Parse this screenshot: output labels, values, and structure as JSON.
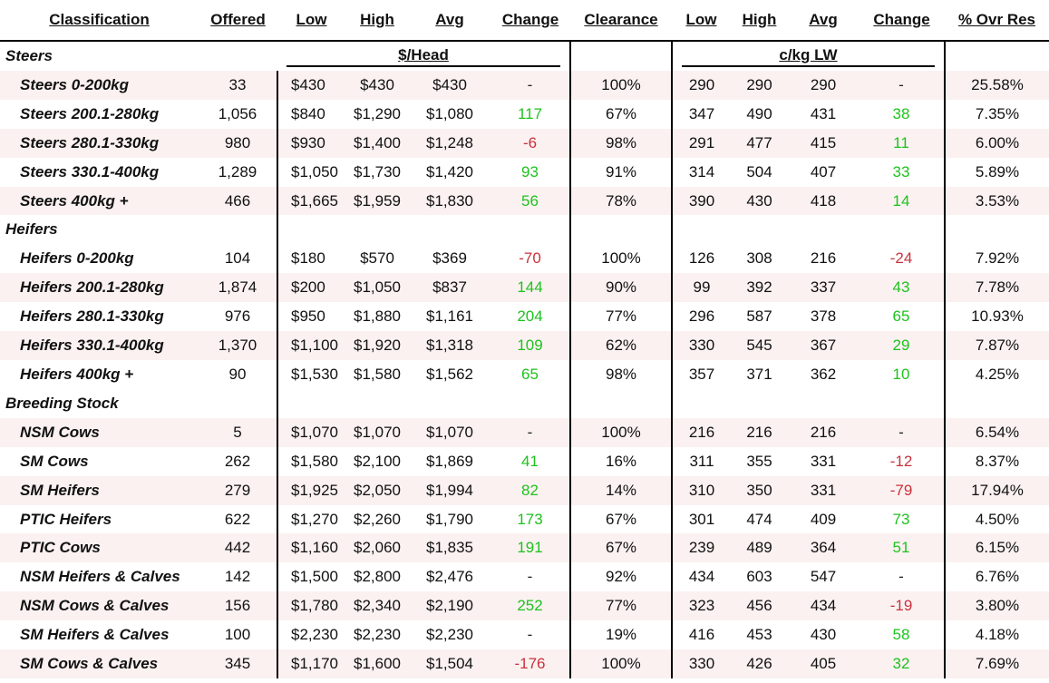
{
  "headers": {
    "classification": "Classification",
    "offered": "Offered",
    "low": "Low",
    "high": "High",
    "avg": "Avg",
    "change": "Change",
    "clearance": "Clearance",
    "low2": "Low",
    "high2": "High",
    "avg2": "Avg",
    "change2": "Change",
    "ovr_res": "% Ovr Res"
  },
  "subheaders": {
    "head": "$/Head",
    "lw": "c/kg LW"
  },
  "colors": {
    "positive": "#1ec21e",
    "negative": "#c8323c",
    "row_shade": "#fbf1f1"
  },
  "sections": [
    {
      "title": "Steers",
      "rows": [
        {
          "name": "Steers 0-200kg",
          "offered": "33",
          "low": "$430",
          "high": "$430",
          "avg": "$430",
          "change": "-",
          "clearance": "100%",
          "low_c": "290",
          "high_c": "290",
          "avg_c": "290",
          "change_c": "-",
          "ovr": "25.58%"
        },
        {
          "name": "Steers 200.1-280kg",
          "offered": "1,056",
          "low": "$840",
          "high": "$1,290",
          "avg": "$1,080",
          "change": "117",
          "clearance": "67%",
          "low_c": "347",
          "high_c": "490",
          "avg_c": "431",
          "change_c": "38",
          "ovr": "7.35%"
        },
        {
          "name": "Steers 280.1-330kg",
          "offered": "980",
          "low": "$930",
          "high": "$1,400",
          "avg": "$1,248",
          "change": "-6",
          "clearance": "98%",
          "low_c": "291",
          "high_c": "477",
          "avg_c": "415",
          "change_c": "11",
          "ovr": "6.00%"
        },
        {
          "name": "Steers 330.1-400kg",
          "offered": "1,289",
          "low": "$1,050",
          "high": "$1,730",
          "avg": "$1,420",
          "change": "93",
          "clearance": "91%",
          "low_c": "314",
          "high_c": "504",
          "avg_c": "407",
          "change_c": "33",
          "ovr": "5.89%"
        },
        {
          "name": "Steers 400kg +",
          "offered": "466",
          "low": "$1,665",
          "high": "$1,959",
          "avg": "$1,830",
          "change": "56",
          "clearance": "78%",
          "low_c": "390",
          "high_c": "430",
          "avg_c": "418",
          "change_c": "14",
          "ovr": "3.53%"
        }
      ]
    },
    {
      "title": "Heifers",
      "rows": [
        {
          "name": "Heifers 0-200kg",
          "offered": "104",
          "low": "$180",
          "high": "$570",
          "avg": "$369",
          "change": "-70",
          "clearance": "100%",
          "low_c": "126",
          "high_c": "308",
          "avg_c": "216",
          "change_c": "-24",
          "ovr": "7.92%"
        },
        {
          "name": "Heifers 200.1-280kg",
          "offered": "1,874",
          "low": "$200",
          "high": "$1,050",
          "avg": "$837",
          "change": "144",
          "clearance": "90%",
          "low_c": "99",
          "high_c": "392",
          "avg_c": "337",
          "change_c": "43",
          "ovr": "7.78%"
        },
        {
          "name": "Heifers 280.1-330kg",
          "offered": "976",
          "low": "$950",
          "high": "$1,880",
          "avg": "$1,161",
          "change": "204",
          "clearance": "77%",
          "low_c": "296",
          "high_c": "587",
          "avg_c": "378",
          "change_c": "65",
          "ovr": "10.93%"
        },
        {
          "name": "Heifers 330.1-400kg",
          "offered": "1,370",
          "low": "$1,100",
          "high": "$1,920",
          "avg": "$1,318",
          "change": "109",
          "clearance": "62%",
          "low_c": "330",
          "high_c": "545",
          "avg_c": "367",
          "change_c": "29",
          "ovr": "7.87%"
        },
        {
          "name": "Heifers 400kg +",
          "offered": "90",
          "low": "$1,530",
          "high": "$1,580",
          "avg": "$1,562",
          "change": "65",
          "clearance": "98%",
          "low_c": "357",
          "high_c": "371",
          "avg_c": "362",
          "change_c": "10",
          "ovr": "4.25%"
        }
      ]
    },
    {
      "title": "Breeding Stock",
      "rows": [
        {
          "name": "NSM Cows",
          "offered": "5",
          "low": "$1,070",
          "high": "$1,070",
          "avg": "$1,070",
          "change": "-",
          "clearance": "100%",
          "low_c": "216",
          "high_c": "216",
          "avg_c": "216",
          "change_c": "-",
          "ovr": "6.54%"
        },
        {
          "name": "SM Cows",
          "offered": "262",
          "low": "$1,580",
          "high": "$2,100",
          "avg": "$1,869",
          "change": "41",
          "clearance": "16%",
          "low_c": "311",
          "high_c": "355",
          "avg_c": "331",
          "change_c": "-12",
          "ovr": "8.37%"
        },
        {
          "name": "SM Heifers",
          "offered": "279",
          "low": "$1,925",
          "high": "$2,050",
          "avg": "$1,994",
          "change": "82",
          "clearance": "14%",
          "low_c": "310",
          "high_c": "350",
          "avg_c": "331",
          "change_c": "-79",
          "ovr": "17.94%"
        },
        {
          "name": "PTIC Heifers",
          "offered": "622",
          "low": "$1,270",
          "high": "$2,260",
          "avg": "$1,790",
          "change": "173",
          "clearance": "67%",
          "low_c": "301",
          "high_c": "474",
          "avg_c": "409",
          "change_c": "73",
          "ovr": "4.50%"
        },
        {
          "name": "PTIC Cows",
          "offered": "442",
          "low": "$1,160",
          "high": "$2,060",
          "avg": "$1,835",
          "change": "191",
          "clearance": "67%",
          "low_c": "239",
          "high_c": "489",
          "avg_c": "364",
          "change_c": "51",
          "ovr": "6.15%"
        },
        {
          "name": "NSM Heifers & Calves",
          "offered": "142",
          "low": "$1,500",
          "high": "$2,800",
          "avg": "$2,476",
          "change": "-",
          "clearance": "92%",
          "low_c": "434",
          "high_c": "603",
          "avg_c": "547",
          "change_c": "-",
          "ovr": "6.76%"
        },
        {
          "name": "NSM Cows & Calves",
          "offered": "156",
          "low": "$1,780",
          "high": "$2,340",
          "avg": "$2,190",
          "change": "252",
          "clearance": "77%",
          "low_c": "323",
          "high_c": "456",
          "avg_c": "434",
          "change_c": "-19",
          "ovr": "3.80%"
        },
        {
          "name": "SM Heifers & Calves",
          "offered": "100",
          "low": "$2,230",
          "high": "$2,230",
          "avg": "$2,230",
          "change": "-",
          "clearance": "19%",
          "low_c": "416",
          "high_c": "453",
          "avg_c": "430",
          "change_c": "58",
          "ovr": "4.18%"
        },
        {
          "name": "SM Cows & Calves",
          "offered": "345",
          "low": "$1,170",
          "high": "$1,600",
          "avg": "$1,504",
          "change": "-176",
          "clearance": "100%",
          "low_c": "330",
          "high_c": "426",
          "avg_c": "405",
          "change_c": "32",
          "ovr": "7.69%"
        }
      ]
    }
  ]
}
